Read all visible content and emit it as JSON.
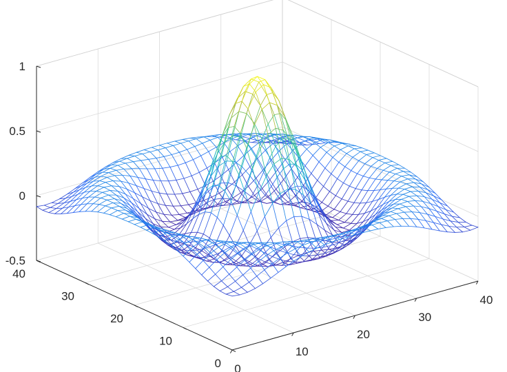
{
  "chart_data": {
    "type": "mesh",
    "function": "z = sin(r)/r, r = sqrt(x^2 + y^2) + eps, x,y in [-8,8]",
    "grid_size": 33,
    "x_ticks": [
      "0",
      "10",
      "20",
      "30",
      "40"
    ],
    "y_ticks": [
      "0",
      "10",
      "20",
      "30",
      "40"
    ],
    "z_ticks": [
      "-0.5",
      "0",
      "0.5",
      "1"
    ],
    "xlim": [
      0,
      40
    ],
    "ylim": [
      0,
      40
    ],
    "zlim": [
      -0.5,
      1
    ],
    "grid": true,
    "colormap": "parula",
    "colormap_stops": [
      "#3e26a8",
      "#2f6df5",
      "#15b1d2",
      "#3ec58d",
      "#b3bd3c",
      "#f9fb14"
    ],
    "title": "",
    "xlabel": "",
    "ylabel": "",
    "zlabel": ""
  }
}
